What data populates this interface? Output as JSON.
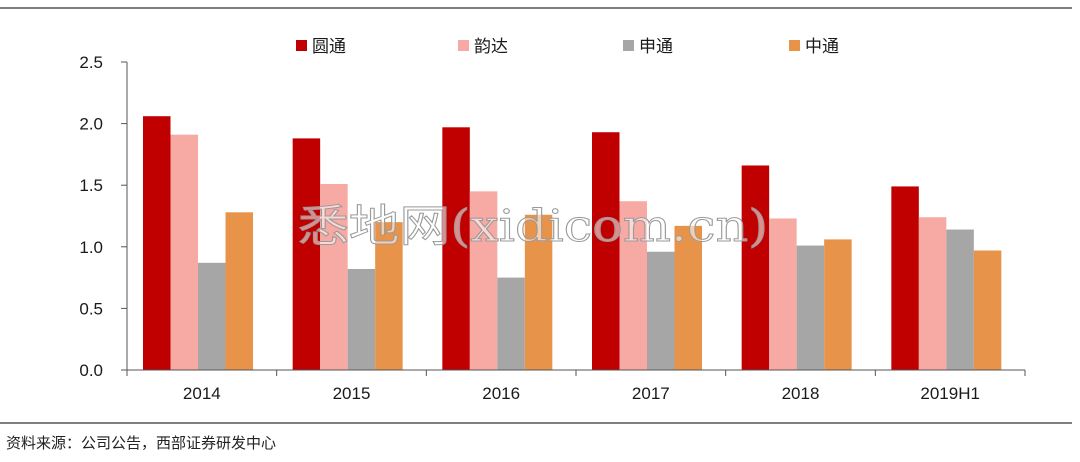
{
  "colors": {
    "yuantong": "#C00000",
    "yunda": "#F7A9A3",
    "shentong": "#A6A6A6",
    "zhongtong": "#E8934A",
    "rule": "#333333",
    "axis": "#555555"
  },
  "watermark": "悉地网(xidicom.cn)",
  "source": "资料来源：公司公告，西部证券研发中心",
  "chart_data": {
    "type": "bar",
    "categories": [
      "2014",
      "2015",
      "2016",
      "2017",
      "2018",
      "2019H1"
    ],
    "series": [
      {
        "name": "圆通",
        "color": "#C00000",
        "values": [
          2.06,
          1.88,
          1.97,
          1.93,
          1.66,
          1.49
        ]
      },
      {
        "name": "韵达",
        "color": "#F7A9A3",
        "values": [
          1.91,
          1.51,
          1.45,
          1.37,
          1.23,
          1.24
        ]
      },
      {
        "name": "申通",
        "color": "#A6A6A6",
        "values": [
          0.87,
          0.82,
          0.75,
          0.96,
          1.01,
          1.14
        ]
      },
      {
        "name": "中通",
        "color": "#E8934A",
        "values": [
          1.28,
          1.2,
          1.26,
          1.17,
          1.06,
          0.97
        ]
      }
    ],
    "yticks": [
      "0.0",
      "0.5",
      "1.0",
      "1.5",
      "2.0",
      "2.5"
    ],
    "ylim": [
      0,
      2.5
    ],
    "legend_position": "top",
    "grid": false
  }
}
